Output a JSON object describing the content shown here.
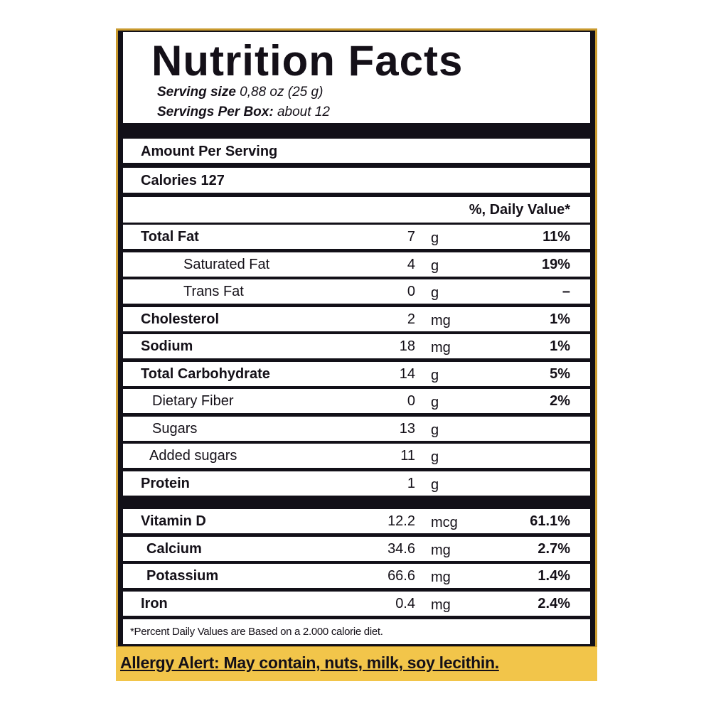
{
  "header": {
    "title": "Nutrition Facts",
    "serving_size_label": "Serving size",
    "serving_size": "0,88 oz (25 g)",
    "servings_label": "Servings Per Box:",
    "servings": "about 12"
  },
  "amount_per_serving": "Amount Per Serving",
  "calories": {
    "label": "Calories",
    "value": 127
  },
  "daily_value_header": "%, Daily Value*",
  "nutrients": [
    {
      "name": "Total Fat",
      "amount": 7,
      "unit": "g",
      "daily_value": "11%"
    },
    {
      "name": "Saturated Fat",
      "amount": 4,
      "unit": "g",
      "daily_value": "19%"
    },
    {
      "name": "Trans Fat",
      "amount": 0,
      "unit": "g",
      "daily_value": "–"
    },
    {
      "name": "Cholesterol",
      "amount": 2,
      "unit": "mg",
      "daily_value": "1%"
    },
    {
      "name": "Sodium",
      "amount": 18,
      "unit": "mg",
      "daily_value": "1%"
    },
    {
      "name": "Total Carbohydrate",
      "amount": 14,
      "unit": "g",
      "daily_value": "5%"
    },
    {
      "name": "Dietary Fiber",
      "amount": 0,
      "unit": "g",
      "daily_value": "2%"
    },
    {
      "name": "Sugars",
      "amount": 13,
      "unit": "g"
    },
    {
      "name": "Added sugars",
      "amount": 11,
      "unit": "g"
    },
    {
      "name": "Protein",
      "amount": 1,
      "unit": "g"
    }
  ],
  "vitamins": [
    {
      "name": "Vitamin D",
      "amount": 12.2,
      "unit": "mcg",
      "daily_value": "61.1%"
    },
    {
      "name": "Calcium",
      "amount": 34.6,
      "unit": "mg",
      "daily_value": "2.7%"
    },
    {
      "name": "Potassium",
      "amount": 66.6,
      "unit": "mg",
      "daily_value": "1.4%"
    },
    {
      "name": "Iron",
      "amount": 0.4,
      "unit": "mg",
      "daily_value": "2.4%"
    }
  ],
  "footnote": "*Percent Daily Values are Based on a 2.000 calorie diet.",
  "allergy": "Allergy Alert: May contain, nuts, milk, soy lecithin."
}
